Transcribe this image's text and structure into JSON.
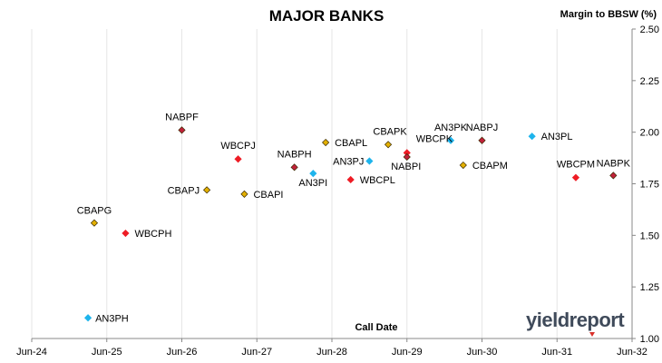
{
  "chart_data": {
    "type": "scatter",
    "title": "MAJOR BANKS",
    "xlabel": "Call Date",
    "ylabel": "Margin to BBSW (%)",
    "x_ticks": [
      "Jun-24",
      "Jun-25",
      "Jun-26",
      "Jun-27",
      "Jun-28",
      "Jun-29",
      "Jun-30",
      "Jun-31",
      "Jun-32"
    ],
    "y_ticks": [
      "1.00",
      "1.25",
      "1.50",
      "1.75",
      "2.00",
      "2.25",
      "2.50"
    ],
    "xlim": [
      "2024-06",
      "2032-06"
    ],
    "ylim": [
      1.0,
      2.5
    ],
    "y_axis_side": "right",
    "grid": "vertical",
    "colors": {
      "ANZ": "#1eb4ec",
      "CBA": "#e3b000",
      "NAB": "#c0213a",
      "WBC": "#ee1c25"
    },
    "points": [
      {
        "label": "AN3PH",
        "bank": "ANZ",
        "x": "2025-03",
        "y": 1.1
      },
      {
        "label": "CBAPG",
        "bank": "CBA",
        "x": "2025-04",
        "y": 1.56
      },
      {
        "label": "WBCPH",
        "bank": "WBC",
        "x": "2025-09",
        "y": 1.51
      },
      {
        "label": "NABPF",
        "bank": "NAB",
        "x": "2026-06",
        "y": 2.01
      },
      {
        "label": "CBAPJ",
        "bank": "CBA",
        "x": "2026-10",
        "y": 1.72
      },
      {
        "label": "WBCPJ",
        "bank": "WBC",
        "x": "2027-03",
        "y": 1.87
      },
      {
        "label": "CBAPI",
        "bank": "CBA",
        "x": "2027-04",
        "y": 1.7
      },
      {
        "label": "NABPH",
        "bank": "NAB",
        "x": "2027-12",
        "y": 1.83
      },
      {
        "label": "AN3PI",
        "bank": "ANZ",
        "x": "2028-03",
        "y": 1.8
      },
      {
        "label": "CBAPL",
        "bank": "CBA",
        "x": "2028-05",
        "y": 1.95
      },
      {
        "label": "WBCPL",
        "bank": "WBC",
        "x": "2028-09",
        "y": 1.77
      },
      {
        "label": "AN3PJ",
        "bank": "ANZ",
        "x": "2028-12",
        "y": 1.86
      },
      {
        "label": "CBAPK",
        "bank": "CBA",
        "x": "2029-03",
        "y": 1.94
      },
      {
        "label": "WBCPK",
        "bank": "WBC",
        "x": "2029-06",
        "y": 1.9
      },
      {
        "label": "NABPI",
        "bank": "NAB",
        "x": "2029-06",
        "y": 1.88
      },
      {
        "label": "AN3PK",
        "bank": "ANZ",
        "x": "2030-01",
        "y": 1.96
      },
      {
        "label": "CBAPM",
        "bank": "CBA",
        "x": "2030-03",
        "y": 1.84
      },
      {
        "label": "NABPJ",
        "bank": "NAB",
        "x": "2030-06",
        "y": 1.96
      },
      {
        "label": "AN3PL",
        "bank": "ANZ",
        "x": "2031-02",
        "y": 1.98
      },
      {
        "label": "WBCPM",
        "bank": "WBC",
        "x": "2031-09",
        "y": 1.78
      },
      {
        "label": "NABPK",
        "bank": "NAB",
        "x": "2032-03",
        "y": 1.79
      }
    ]
  },
  "branding": {
    "logo_text": "yieldreport"
  }
}
